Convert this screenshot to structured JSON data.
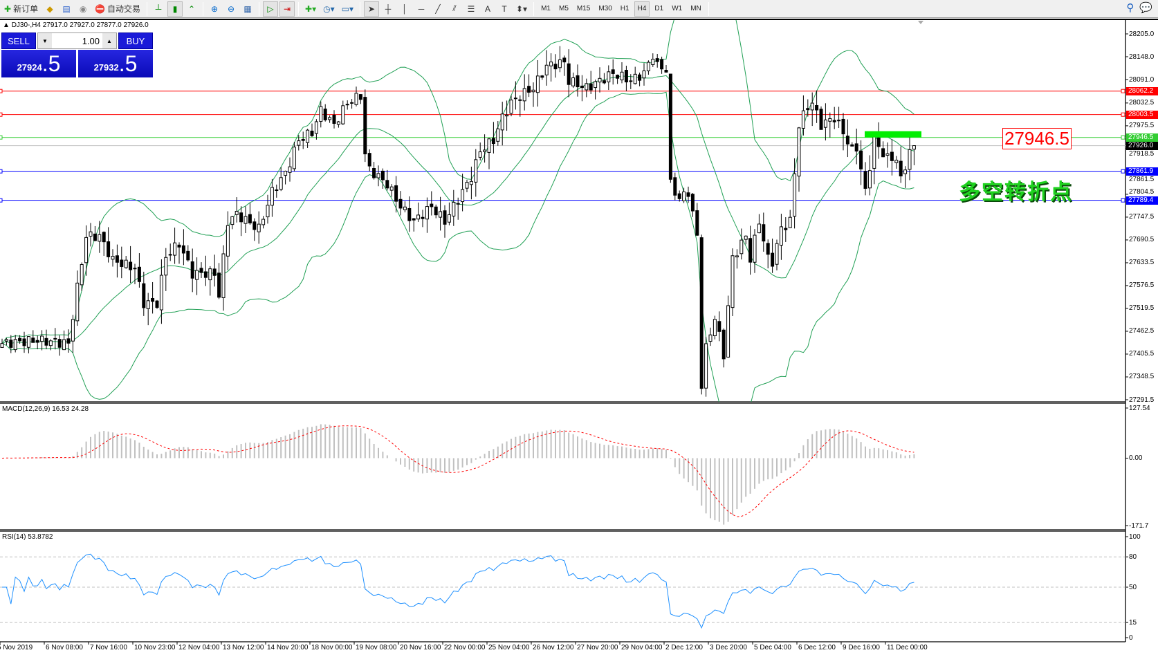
{
  "toolbar": {
    "new_order": "新订单",
    "auto_trading": "自动交易",
    "timeframes": [
      "M1",
      "M5",
      "M15",
      "M30",
      "H1",
      "H4",
      "D1",
      "W1",
      "MN"
    ],
    "active_timeframe": "H4"
  },
  "chart": {
    "symbol_info": "DJ30-,H4  27917.0 27927.0 27877.0 27926.0"
  },
  "trade_panel": {
    "sell_label": "SELL",
    "buy_label": "BUY",
    "lots": "1.00",
    "bid_main": "27924",
    "bid_frac": ".5",
    "ask_main": "27932",
    "ask_frac": ".5"
  },
  "price_axis": {
    "min": 27291.5,
    "max": 28205.0,
    "ticks": [
      "28205.0",
      "28148.0",
      "28091.0",
      "28032.5",
      "27975.5",
      "27918.5",
      "27861.5",
      "27804.5",
      "27747.5",
      "27690.5",
      "27633.5",
      "27576.5",
      "27519.5",
      "27462.5",
      "27405.5",
      "27348.5",
      "27291.5"
    ]
  },
  "levels": [
    {
      "price": 28062.2,
      "label": "28062.2",
      "color": "#ff0000"
    },
    {
      "price": 28003.5,
      "label": "28003.5",
      "color": "#ff0000"
    },
    {
      "price": 27946.5,
      "label": "27946.5",
      "color": "#32cd32"
    },
    {
      "price": 27926.0,
      "label": "27926.0",
      "color": "#000000",
      "line": "#c0c0c0"
    },
    {
      "price": 27861.9,
      "label": "27861.9",
      "color": "#0000ff"
    },
    {
      "price": 27789.4,
      "label": "27789.4",
      "color": "#0000ff"
    }
  ],
  "annotation": {
    "price_label": "27946.5",
    "text": "多空转折点",
    "bar_color": "#00ee00",
    "text_color": "#1fd21f"
  },
  "macd": {
    "label": "MACD(12,26,9) 16.53 24.28",
    "max": 127.54,
    "min": -171.7,
    "ticks": [
      "127.54",
      "0.00",
      "-171.7"
    ]
  },
  "rsi": {
    "label": "RSI(14) 53.8782",
    "ticks": [
      "100",
      "80",
      "50",
      "15",
      "0"
    ],
    "levels": [
      80,
      50,
      15
    ]
  },
  "time_axis": [
    "5 Nov 2019",
    "6 Nov 08:00",
    "7 Nov 16:00",
    "10 Nov 23:00",
    "12 Nov 04:00",
    "13 Nov 12:00",
    "14 Nov 20:00",
    "18 Nov 00:00",
    "19 Nov 08:00",
    "20 Nov 16:00",
    "22 Nov 00:00",
    "25 Nov 04:00",
    "26 Nov 12:00",
    "27 Nov 20:00",
    "29 Nov 04:00",
    "2 Dec 12:00",
    "3 Dec 20:00",
    "5 Dec 04:00",
    "6 Dec 12:00",
    "9 Dec 16:00",
    "11 Dec 00:00"
  ],
  "chart_data": {
    "type": "candlestick",
    "symbol": "DJ30-",
    "timeframe": "H4",
    "bar_count": 207,
    "close_anchors": [
      [
        0,
        27432
      ],
      [
        8,
        27440
      ],
      [
        15,
        27432
      ],
      [
        17,
        27571
      ],
      [
        19,
        27700
      ],
      [
        22,
        27700
      ],
      [
        25,
        27640
      ],
      [
        30,
        27620
      ],
      [
        32,
        27533
      ],
      [
        35,
        27533
      ],
      [
        37,
        27650
      ],
      [
        40,
        27682
      ],
      [
        43,
        27607
      ],
      [
        48,
        27607
      ],
      [
        49,
        27552
      ],
      [
        51,
        27737
      ],
      [
        53,
        27755
      ],
      [
        58,
        27718
      ],
      [
        61,
        27811
      ],
      [
        64,
        27857
      ],
      [
        67,
        27940
      ],
      [
        70,
        27959
      ],
      [
        72,
        28014
      ],
      [
        75,
        27978
      ],
      [
        78,
        28033
      ],
      [
        81,
        28051
      ],
      [
        82,
        27904
      ],
      [
        83,
        27867
      ],
      [
        87,
        27830
      ],
      [
        90,
        27774
      ],
      [
        93,
        27737
      ],
      [
        97,
        27774
      ],
      [
        100,
        27737
      ],
      [
        103,
        27793
      ],
      [
        106,
        27848
      ],
      [
        108,
        27913
      ],
      [
        111,
        27940
      ],
      [
        113,
        27996
      ],
      [
        115,
        28033
      ],
      [
        117,
        28051
      ],
      [
        120,
        28070
      ],
      [
        123,
        28125
      ],
      [
        127,
        28134
      ],
      [
        128,
        28088
      ],
      [
        132,
        28070
      ],
      [
        135,
        28088
      ],
      [
        138,
        28107
      ],
      [
        142,
        28088
      ],
      [
        145,
        28107
      ],
      [
        147,
        28153
      ],
      [
        148,
        28125
      ],
      [
        150,
        28116
      ],
      [
        151,
        27830
      ],
      [
        153,
        27793
      ],
      [
        155,
        27811
      ],
      [
        157,
        27700
      ],
      [
        158,
        27330
      ],
      [
        159,
        27420
      ],
      [
        161,
        27497
      ],
      [
        163,
        27404
      ],
      [
        165,
        27644
      ],
      [
        168,
        27700
      ],
      [
        169,
        27644
      ],
      [
        171,
        27737
      ],
      [
        173,
        27644
      ],
      [
        174,
        27636
      ],
      [
        176,
        27718
      ],
      [
        178,
        27737
      ],
      [
        180,
        27978
      ],
      [
        182,
        28024
      ],
      [
        183,
        28033
      ],
      [
        185,
        27978
      ],
      [
        188,
        27996
      ],
      [
        190,
        27959
      ],
      [
        192,
        27913
      ],
      [
        193,
        27922
      ],
      [
        195,
        27811
      ],
      [
        197,
        27940
      ],
      [
        198,
        27922
      ],
      [
        200,
        27894
      ],
      [
        202,
        27894
      ],
      [
        203,
        27839
      ],
      [
        205,
        27913
      ],
      [
        206,
        27926
      ]
    ],
    "last_bar": {
      "open": 27917.0,
      "high": 27927.0,
      "low": 27877.0,
      "close": 27926.0
    },
    "indicators": [
      "Bollinger Bands",
      "MACD(12,26,9)",
      "RSI(14)"
    ],
    "colors": {
      "bands": "#21a055",
      "macd_hist": "#c0c0c0",
      "macd_signal": "#ff0000",
      "rsi": "#1e90ff"
    }
  }
}
